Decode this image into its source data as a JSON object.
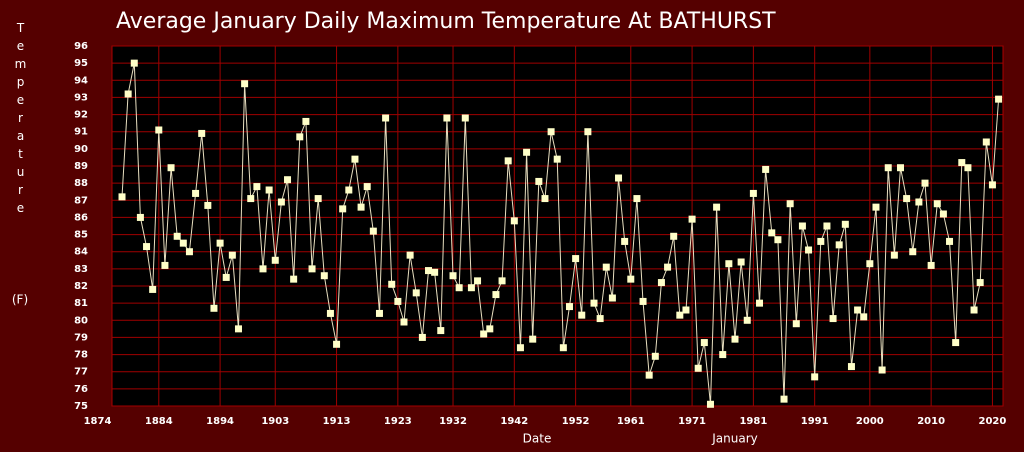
{
  "chart_data": {
    "type": "line",
    "title": "Average January Daily Maximum Temperature At BATHURST",
    "x_label": "Date",
    "y_label": "Temperature",
    "y_unit": "(F)",
    "annotation": "January",
    "x": [
      1878,
      1879,
      1880,
      1881,
      1882,
      1883,
      1884,
      1885,
      1886,
      1887,
      1888,
      1889,
      1890,
      1891,
      1892,
      1893,
      1894,
      1895,
      1896,
      1897,
      1898,
      1899,
      1900,
      1901,
      1902,
      1903,
      1904,
      1905,
      1906,
      1907,
      1908,
      1909,
      1910,
      1911,
      1912,
      1913,
      1914,
      1915,
      1916,
      1917,
      1918,
      1919,
      1920,
      1921,
      1922,
      1923,
      1924,
      1925,
      1926,
      1927,
      1928,
      1929,
      1930,
      1931,
      1932,
      1933,
      1934,
      1935,
      1936,
      1937,
      1938,
      1939,
      1940,
      1941,
      1942,
      1943,
      1944,
      1945,
      1946,
      1947,
      1948,
      1949,
      1950,
      1951,
      1952,
      1953,
      1954,
      1955,
      1956,
      1957,
      1958,
      1959,
      1960,
      1961,
      1962,
      1963,
      1964,
      1965,
      1966,
      1967,
      1968,
      1969,
      1970,
      1971,
      1972,
      1973,
      1974,
      1975,
      1976,
      1977,
      1978,
      1979,
      1980,
      1981,
      1982,
      1983,
      1984,
      1985,
      1986,
      1987,
      1988,
      1989,
      1990,
      1991,
      1992,
      1993,
      1994,
      1995,
      1996,
      1997,
      1998,
      1999,
      2000,
      2001,
      2002,
      2003,
      2004,
      2005,
      2006,
      2007,
      2008,
      2009,
      2010,
      2011,
      2012,
      2013,
      2014,
      2015,
      2016,
      2017,
      2018,
      2019,
      2020,
      2021
    ],
    "series": [
      {
        "name": "Temperature",
        "color": "#e8dfc0",
        "marker_color": "#ffffc8",
        "values": [
          87.2,
          93.2,
          95.0,
          86.0,
          84.3,
          81.8,
          91.1,
          83.2,
          88.9,
          84.9,
          84.5,
          84.0,
          87.4,
          90.9,
          86.7,
          80.7,
          84.5,
          82.5,
          83.8,
          79.5,
          93.8,
          87.1,
          87.8,
          83.0,
          87.6,
          83.5,
          86.9,
          88.2,
          82.4,
          90.7,
          91.6,
          83.0,
          87.1,
          82.6,
          80.4,
          78.6,
          86.5,
          87.6,
          89.4,
          86.6,
          87.8,
          85.2,
          80.4,
          91.8,
          82.1,
          81.1,
          79.9,
          83.8,
          81.6,
          79.0,
          82.9,
          82.8,
          79.4,
          91.8,
          82.6,
          81.9,
          91.8,
          81.9,
          82.3,
          79.2,
          79.5,
          81.5,
          82.3,
          89.3,
          85.8,
          78.4,
          89.8,
          78.9,
          88.1,
          87.1,
          91.0,
          89.4,
          78.4,
          80.8,
          83.6,
          80.3,
          91.0,
          81.0,
          80.1,
          83.1,
          81.3,
          88.3,
          84.6,
          82.4,
          87.1,
          81.1,
          76.8,
          77.9,
          82.2,
          83.1,
          84.9,
          80.3,
          80.6,
          85.9,
          77.2,
          78.7,
          75.1,
          86.6,
          78.0,
          83.3,
          78.9,
          83.4,
          80.0,
          87.4,
          81.0,
          88.8,
          85.1,
          84.7,
          75.4,
          86.8,
          79.8,
          85.5,
          84.1,
          76.7,
          84.6,
          85.5,
          80.1,
          84.4,
          85.6,
          77.3,
          80.6,
          80.2,
          83.3,
          86.6,
          77.1,
          88.9,
          83.8,
          88.9,
          87.1,
          84.0,
          86.9,
          88.0,
          83.2,
          86.8,
          86.2,
          84.6,
          78.7,
          89.2,
          88.9,
          80.6,
          82.2,
          90.4,
          87.9,
          92.9
        ]
      }
    ],
    "xlim": [
      1874,
      2022
    ],
    "xticks": [
      1874,
      1884,
      1894,
      1903,
      1913,
      1923,
      1932,
      1942,
      1952,
      1961,
      1971,
      1981,
      1991,
      2000,
      2010,
      2020
    ],
    "ylim": [
      75,
      96
    ],
    "yticks": [
      75,
      76,
      77,
      78,
      79,
      80,
      81,
      82,
      83,
      84,
      85,
      86,
      87,
      88,
      89,
      90,
      91,
      92,
      93,
      94,
      95,
      96
    ],
    "grid": true
  }
}
